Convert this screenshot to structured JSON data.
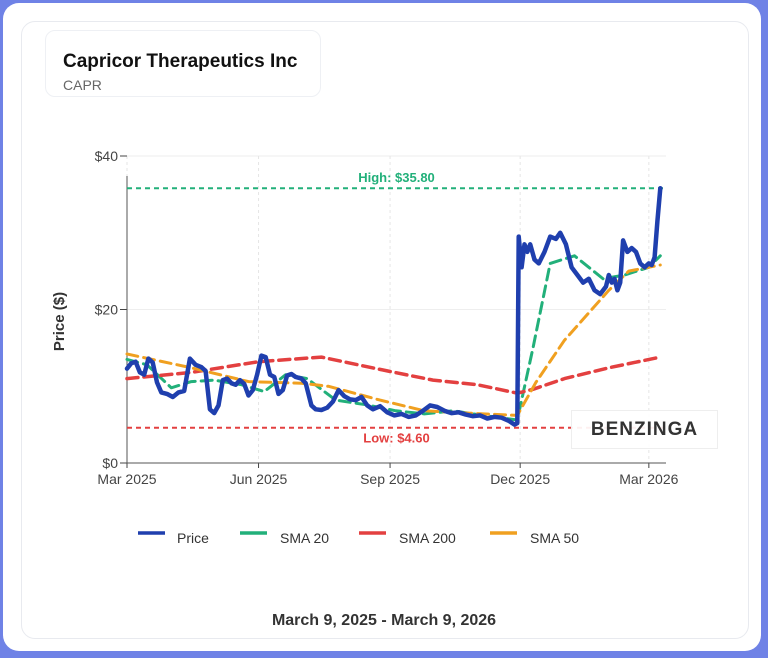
{
  "header": {
    "company_name": "Capricor Therapeutics Inc",
    "ticker": "CAPR"
  },
  "date_range": "March 9, 2025 - March 9, 2026",
  "watermark": "BENZINGA",
  "colors": {
    "price": "#1f3fae",
    "sma20": "#22b07a",
    "sma200": "#e34040",
    "sma50": "#f0a020",
    "high_line": "#22b07a",
    "low_line": "#e34040"
  },
  "chart_data": {
    "type": "line",
    "ylabel": "Price ($)",
    "xlabel": "",
    "ylim": [
      0,
      40
    ],
    "y_ticks": [
      {
        "value": 0,
        "label": "$0"
      },
      {
        "value": 20,
        "label": "$20"
      },
      {
        "value": 40,
        "label": "$40"
      }
    ],
    "x_range": [
      "2025-03-01",
      "2026-03-13"
    ],
    "x_ticks": [
      {
        "date": "2025-03-01",
        "label": "Mar 2025"
      },
      {
        "date": "2025-06-01",
        "label": "Jun 2025"
      },
      {
        "date": "2025-09-01",
        "label": "Sep 2025"
      },
      {
        "date": "2025-12-01",
        "label": "Dec 2025"
      },
      {
        "date": "2026-03-01",
        "label": "Mar 2026"
      }
    ],
    "grid": true,
    "legend_position": "bottom",
    "reference_lines": [
      {
        "name": "high",
        "value": 35.8,
        "label": "High: $35.80"
      },
      {
        "name": "low",
        "value": 4.6,
        "label": "Low: $4.60"
      }
    ],
    "series": [
      {
        "name": "Price",
        "points": [
          [
            "2025-03-01",
            12.3
          ],
          [
            "2025-03-04",
            13.0
          ],
          [
            "2025-03-07",
            13.2
          ],
          [
            "2025-03-10",
            11.8
          ],
          [
            "2025-03-13",
            11.5
          ],
          [
            "2025-03-16",
            13.6
          ],
          [
            "2025-03-19",
            13.1
          ],
          [
            "2025-03-22",
            10.5
          ],
          [
            "2025-03-25",
            9.2
          ],
          [
            "2025-03-29",
            9.0
          ],
          [
            "2025-04-02",
            8.6
          ],
          [
            "2025-04-06",
            9.2
          ],
          [
            "2025-04-10",
            9.4
          ],
          [
            "2025-04-14",
            13.6
          ],
          [
            "2025-04-18",
            12.8
          ],
          [
            "2025-04-22",
            12.5
          ],
          [
            "2025-04-25",
            12.0
          ],
          [
            "2025-04-28",
            7.0
          ],
          [
            "2025-05-01",
            6.5
          ],
          [
            "2025-05-04",
            7.5
          ],
          [
            "2025-05-07",
            10.8
          ],
          [
            "2025-05-10",
            11.0
          ],
          [
            "2025-05-13",
            10.4
          ],
          [
            "2025-05-16",
            10.2
          ],
          [
            "2025-05-19",
            10.8
          ],
          [
            "2025-05-22",
            10.3
          ],
          [
            "2025-05-25",
            8.8
          ],
          [
            "2025-05-28",
            9.5
          ],
          [
            "2025-05-31",
            11.5
          ],
          [
            "2025-06-03",
            14.0
          ],
          [
            "2025-06-06",
            13.8
          ],
          [
            "2025-06-09",
            11.5
          ],
          [
            "2025-06-12",
            11.2
          ],
          [
            "2025-06-15",
            9.0
          ],
          [
            "2025-06-18",
            9.5
          ],
          [
            "2025-06-21",
            11.4
          ],
          [
            "2025-06-24",
            11.6
          ],
          [
            "2025-06-27",
            11.2
          ],
          [
            "2025-07-01",
            11.0
          ],
          [
            "2025-07-04",
            10.4
          ],
          [
            "2025-07-08",
            7.5
          ],
          [
            "2025-07-11",
            7.0
          ],
          [
            "2025-07-15",
            6.9
          ],
          [
            "2025-07-19",
            7.2
          ],
          [
            "2025-07-23",
            8.0
          ],
          [
            "2025-07-27",
            9.5
          ],
          [
            "2025-07-31",
            8.7
          ],
          [
            "2025-08-04",
            8.3
          ],
          [
            "2025-08-08",
            8.2
          ],
          [
            "2025-08-12",
            8.6
          ],
          [
            "2025-08-16",
            7.5
          ],
          [
            "2025-08-20",
            7.0
          ],
          [
            "2025-08-25",
            7.4
          ],
          [
            "2025-08-30",
            6.6
          ],
          [
            "2025-09-04",
            6.2
          ],
          [
            "2025-09-09",
            6.4
          ],
          [
            "2025-09-14",
            6.0
          ],
          [
            "2025-09-19",
            6.2
          ],
          [
            "2025-09-24",
            6.8
          ],
          [
            "2025-09-29",
            7.5
          ],
          [
            "2025-10-04",
            7.3
          ],
          [
            "2025-10-09",
            6.8
          ],
          [
            "2025-10-14",
            6.5
          ],
          [
            "2025-10-19",
            6.6
          ],
          [
            "2025-10-24",
            6.3
          ],
          [
            "2025-10-29",
            6.1
          ],
          [
            "2025-11-03",
            6.2
          ],
          [
            "2025-11-08",
            5.8
          ],
          [
            "2025-11-13",
            6.0
          ],
          [
            "2025-11-18",
            5.9
          ],
          [
            "2025-11-23",
            5.5
          ],
          [
            "2025-11-27",
            5.0
          ],
          [
            "2025-11-29",
            5.2
          ],
          [
            "2025-11-30",
            29.5
          ],
          [
            "2025-12-02",
            25.5
          ],
          [
            "2025-12-04",
            28.5
          ],
          [
            "2025-12-06",
            27.5
          ],
          [
            "2025-12-08",
            28.5
          ],
          [
            "2025-12-11",
            26.5
          ],
          [
            "2025-12-14",
            26.0
          ],
          [
            "2025-12-18",
            27.5
          ],
          [
            "2025-12-22",
            29.5
          ],
          [
            "2025-12-26",
            29.2
          ],
          [
            "2025-12-29",
            30.0
          ],
          [
            "2026-01-02",
            28.5
          ],
          [
            "2026-01-06",
            25.5
          ],
          [
            "2026-01-10",
            24.5
          ],
          [
            "2026-01-14",
            23.5
          ],
          [
            "2026-01-18",
            24.0
          ],
          [
            "2026-01-22",
            22.5
          ],
          [
            "2026-01-26",
            22.0
          ],
          [
            "2026-01-30",
            23.0
          ],
          [
            "2026-02-01",
            24.5
          ],
          [
            "2026-02-03",
            23.5
          ],
          [
            "2026-02-05",
            24.0
          ],
          [
            "2026-02-07",
            22.5
          ],
          [
            "2026-02-09",
            23.5
          ],
          [
            "2026-02-11",
            29.0
          ],
          [
            "2026-02-14",
            27.5
          ],
          [
            "2026-02-17",
            28.0
          ],
          [
            "2026-02-20",
            27.5
          ],
          [
            "2026-02-23",
            26.0
          ],
          [
            "2026-02-26",
            25.5
          ],
          [
            "2026-03-01",
            26.0
          ],
          [
            "2026-03-03",
            25.8
          ],
          [
            "2026-03-05",
            26.8
          ],
          [
            "2026-03-07",
            31.5
          ],
          [
            "2026-03-09",
            35.8
          ]
        ]
      },
      {
        "name": "SMA 20",
        "points": [
          [
            "2025-03-01",
            13.5
          ],
          [
            "2025-03-15",
            12.8
          ],
          [
            "2025-04-01",
            9.8
          ],
          [
            "2025-04-15",
            10.6
          ],
          [
            "2025-05-01",
            10.8
          ],
          [
            "2025-05-20",
            10.2
          ],
          [
            "2025-06-05",
            9.3
          ],
          [
            "2025-06-20",
            11.5
          ],
          [
            "2025-07-05",
            11.0
          ],
          [
            "2025-07-25",
            8.2
          ],
          [
            "2025-08-15",
            7.6
          ],
          [
            "2025-09-05",
            6.8
          ],
          [
            "2025-09-25",
            6.4
          ],
          [
            "2025-10-15",
            6.8
          ],
          [
            "2025-11-05",
            6.2
          ],
          [
            "2025-11-29",
            5.6
          ],
          [
            "2025-12-10",
            15.0
          ],
          [
            "2025-12-22",
            26.0
          ],
          [
            "2026-01-08",
            27.0
          ],
          [
            "2026-01-28",
            24.0
          ],
          [
            "2026-02-12",
            24.5
          ],
          [
            "2026-03-01",
            25.5
          ],
          [
            "2026-03-09",
            27.0
          ]
        ]
      },
      {
        "name": "SMA 200",
        "points": [
          [
            "2025-03-01",
            11.0
          ],
          [
            "2025-04-15",
            11.8
          ],
          [
            "2025-06-01",
            13.2
          ],
          [
            "2025-07-15",
            13.8
          ],
          [
            "2025-08-30",
            12.0
          ],
          [
            "2025-10-01",
            10.8
          ],
          [
            "2025-11-01",
            10.2
          ],
          [
            "2025-11-29",
            9.1
          ],
          [
            "2025-12-10",
            9.6
          ],
          [
            "2026-01-01",
            11.0
          ],
          [
            "2026-02-01",
            12.4
          ],
          [
            "2026-03-09",
            13.8
          ]
        ]
      },
      {
        "name": "SMA 50",
        "points": [
          [
            "2025-03-01",
            14.2
          ],
          [
            "2025-04-15",
            12.4
          ],
          [
            "2025-05-25",
            10.6
          ],
          [
            "2025-07-01",
            10.4
          ],
          [
            "2025-07-20",
            10.0
          ],
          [
            "2025-08-25",
            8.2
          ],
          [
            "2025-09-25",
            6.8
          ],
          [
            "2025-10-25",
            6.5
          ],
          [
            "2025-11-29",
            6.2
          ],
          [
            "2025-12-12",
            10.5
          ],
          [
            "2026-01-01",
            16.0
          ],
          [
            "2026-02-01",
            22.5
          ],
          [
            "2026-02-15",
            25.0
          ],
          [
            "2026-03-09",
            25.8
          ]
        ]
      }
    ]
  }
}
